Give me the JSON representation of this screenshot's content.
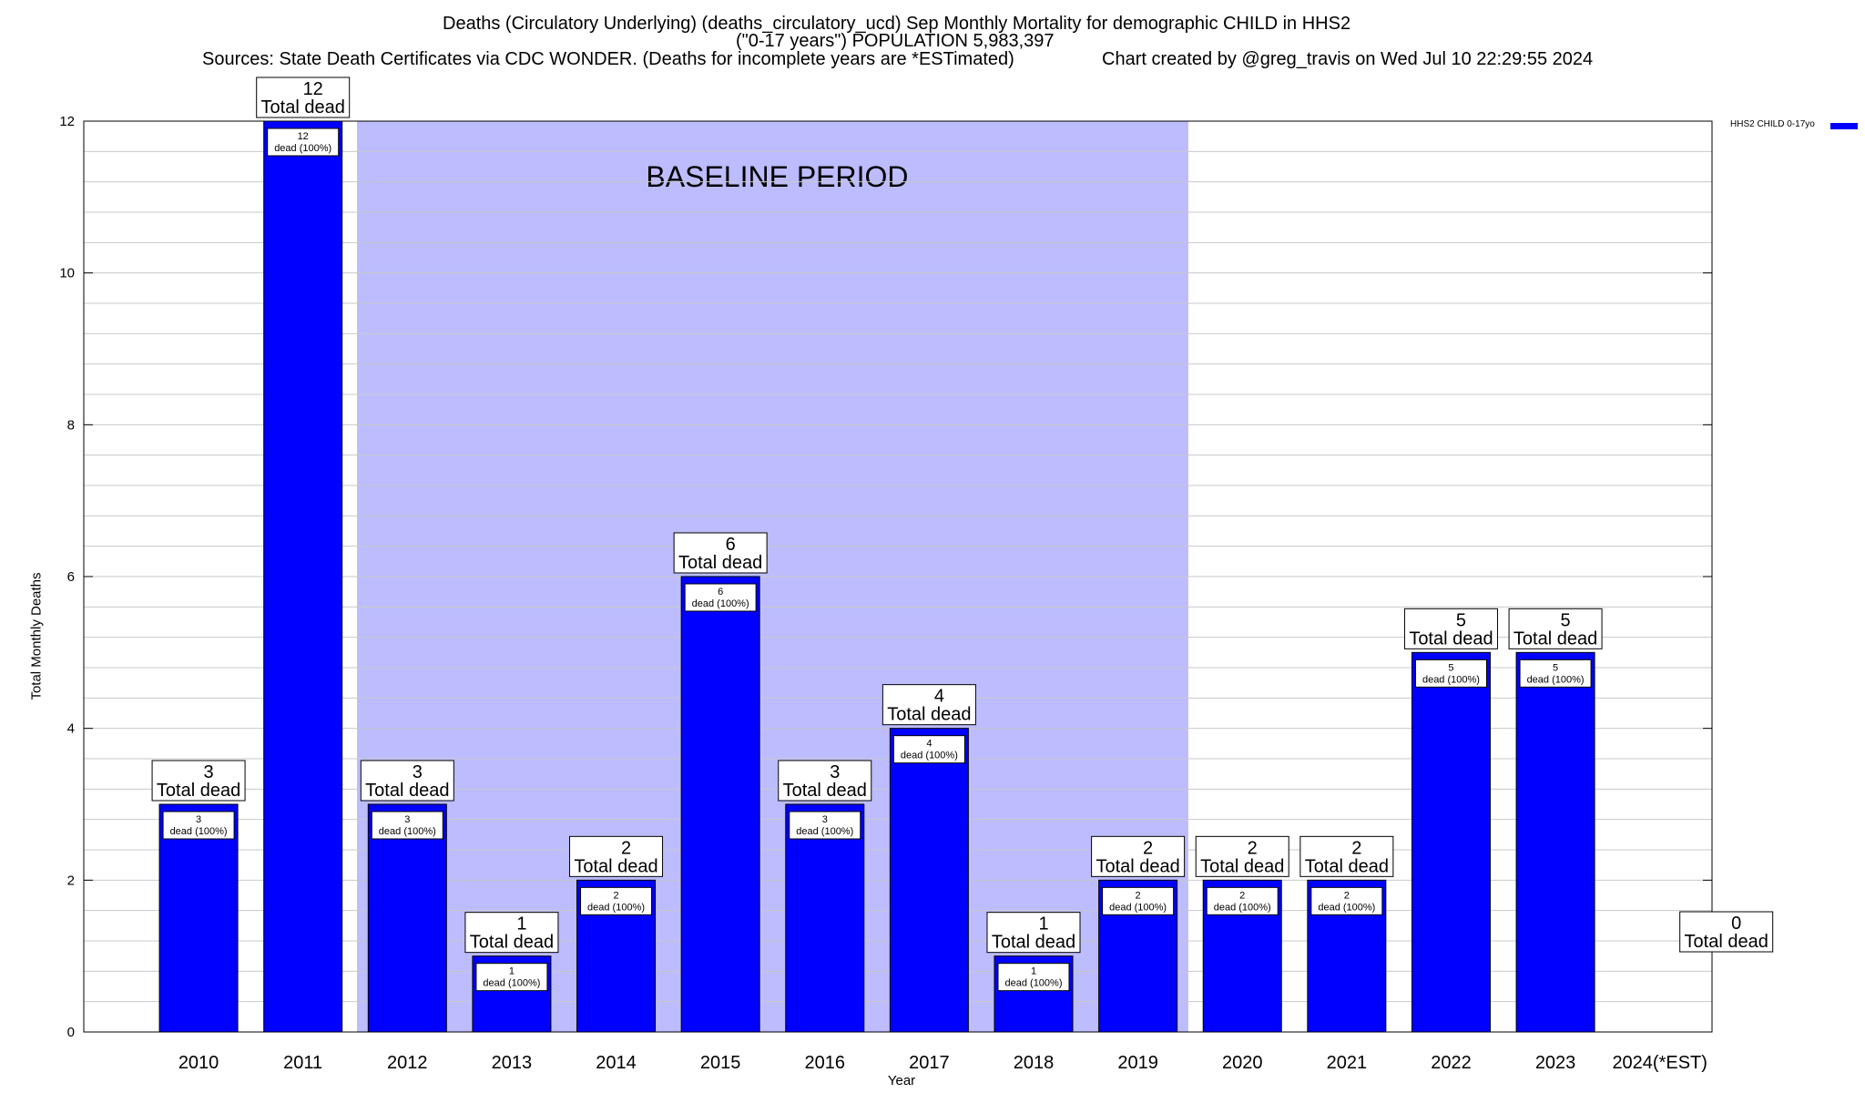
{
  "title": {
    "line1": "Deaths (Circulatory Underlying) (deaths_circulatory_ucd) Sep Monthly Mortality for demographic CHILD in HHS2",
    "line2": "(\"0-17 years\") POPULATION 5,983,397",
    "line3_left": "Sources: State Death Certificates via CDC WONDER. (Deaths for incomplete years are *ESTimated)",
    "line3_right": "Chart created by @greg_travis on Wed Jul 10 22:29:55 2024"
  },
  "legend": {
    "label": "HHS2 CHILD 0-17yo",
    "color": "#0000ff"
  },
  "colors": {
    "bar": "#0000ff",
    "baseline": "#bcbcff",
    "grid": "#c8c8c8"
  },
  "chart_data": {
    "type": "bar",
    "xlabel": "Year",
    "ylabel": "Total Monthly Deaths",
    "ylim": [
      0,
      12
    ],
    "yticks": [
      0,
      2,
      4,
      6,
      8,
      10,
      12
    ],
    "grid": true,
    "legend_position": "top-right",
    "categories": [
      "2010",
      "2011",
      "2012",
      "2013",
      "2014",
      "2015",
      "2016",
      "2017",
      "2018",
      "2019",
      "2020",
      "2021",
      "2022",
      "2023",
      "2024(*EST)"
    ],
    "series": [
      {
        "name": "HHS2 CHILD 0-17yo",
        "values": [
          3,
          12,
          3,
          1,
          2,
          6,
          3,
          4,
          1,
          2,
          2,
          2,
          5,
          5,
          0
        ]
      }
    ],
    "baseline_period": {
      "label": "BASELINE PERIOD",
      "start": "2012",
      "end": "2019"
    },
    "total_label_suffix": "Total dead",
    "inner_label_suffix": "dead (100%)"
  }
}
